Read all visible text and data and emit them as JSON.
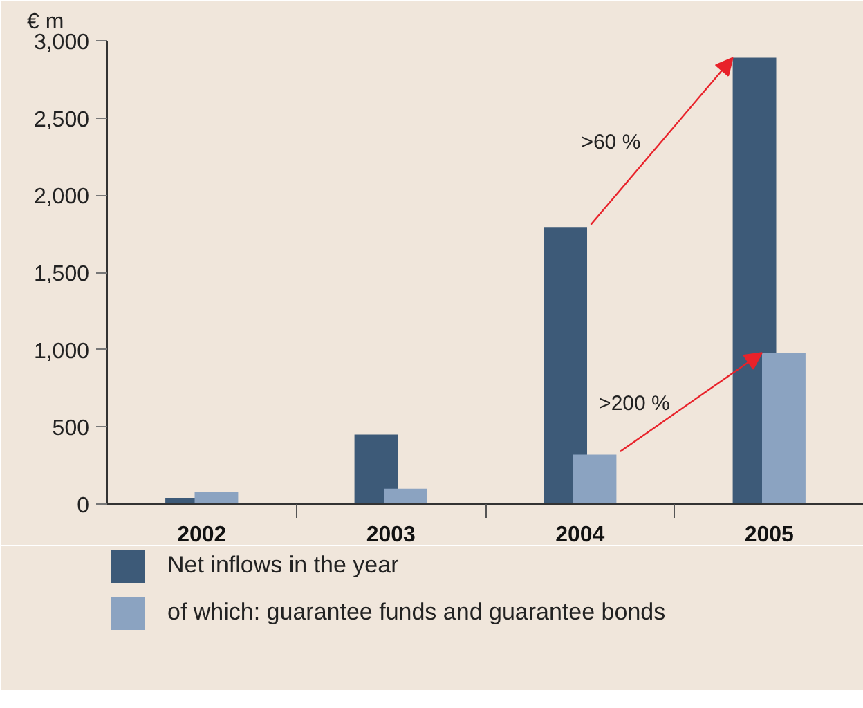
{
  "chart_data": {
    "type": "bar",
    "ylabel": "€ m",
    "categories": [
      "2002",
      "2003",
      "2004",
      "2005"
    ],
    "series": [
      {
        "name": "Net inflows in the year",
        "color": "#3d5a78",
        "values": [
          40,
          450,
          1790,
          2890
        ]
      },
      {
        "name": "of which: guarantee funds and guarantee bonds",
        "color": "#8ba3c1",
        "values": [
          80,
          100,
          320,
          980
        ]
      }
    ],
    "ylim": [
      0,
      3000
    ],
    "yticks": [
      0,
      {
        "value": 500,
        "label": "500"
      },
      {
        "value": 1000,
        "label": "1,000"
      },
      {
        "value": 1500,
        "label": "1,500"
      },
      {
        "value": 2000,
        "label": "2,000"
      },
      {
        "value": 2500,
        "label": "2,500"
      },
      {
        "value": 3000,
        "label": "3,000"
      }
    ],
    "annotations": [
      ">60 %",
      ">200 %"
    ],
    "grid": false,
    "legend": "bottom"
  }
}
